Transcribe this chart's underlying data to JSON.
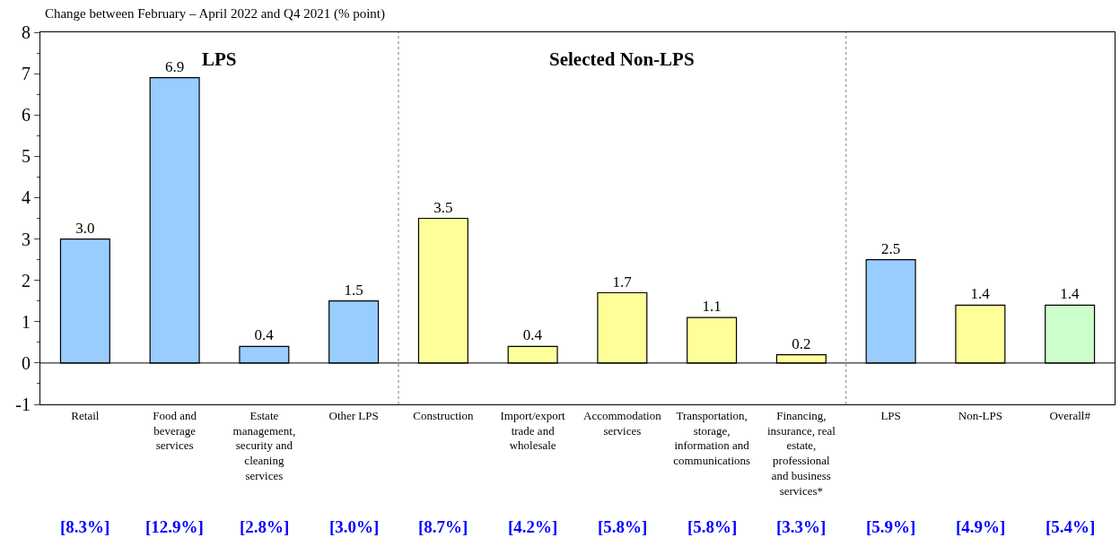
{
  "chart_data": {
    "type": "bar",
    "title": "Change between February – April 2022 and Q4 2021 (% point)",
    "categories": [
      "Retail",
      "Food and beverage services",
      "Estate management, security and cleaning services",
      "Other LPS",
      "Construction",
      "Import/export trade and wholesale",
      "Accommodation services",
      "Transportation, storage, information and communications",
      "Financing, insurance, real estate, professional and business services*",
      "LPS",
      "Non-LPS",
      "Overall#"
    ],
    "values": [
      3.0,
      6.9,
      0.4,
      1.5,
      3.5,
      0.4,
      1.7,
      1.1,
      0.2,
      2.5,
      1.4,
      1.4
    ],
    "colors": [
      "#99ccff",
      "#99ccff",
      "#99ccff",
      "#99ccff",
      "#ffff99",
      "#ffff99",
      "#ffff99",
      "#ffff99",
      "#ffff99",
      "#99ccff",
      "#ffff99",
      "#ccffcc"
    ],
    "value_labels": [
      "3.0",
      "6.9",
      "0.4",
      "1.5",
      "3.5",
      "0.4",
      "1.7",
      "1.1",
      "0.2",
      "2.5",
      "1.4",
      "1.4"
    ],
    "ylim": [
      -1,
      8
    ],
    "yticks": [
      -1,
      0,
      1,
      2,
      3,
      4,
      5,
      6,
      7,
      8
    ],
    "annotations": [
      "LPS",
      "Selected Non-LPS",
      "[8.3%]",
      "[12.9%]",
      "[2.8%]",
      "[3.0%]",
      "[8.7%]",
      "[4.2%]",
      "[5.8%]",
      "[5.8%]",
      "[3.3%]",
      "[5.9%]",
      "[4.9%]",
      "[5.4%]"
    ]
  }
}
